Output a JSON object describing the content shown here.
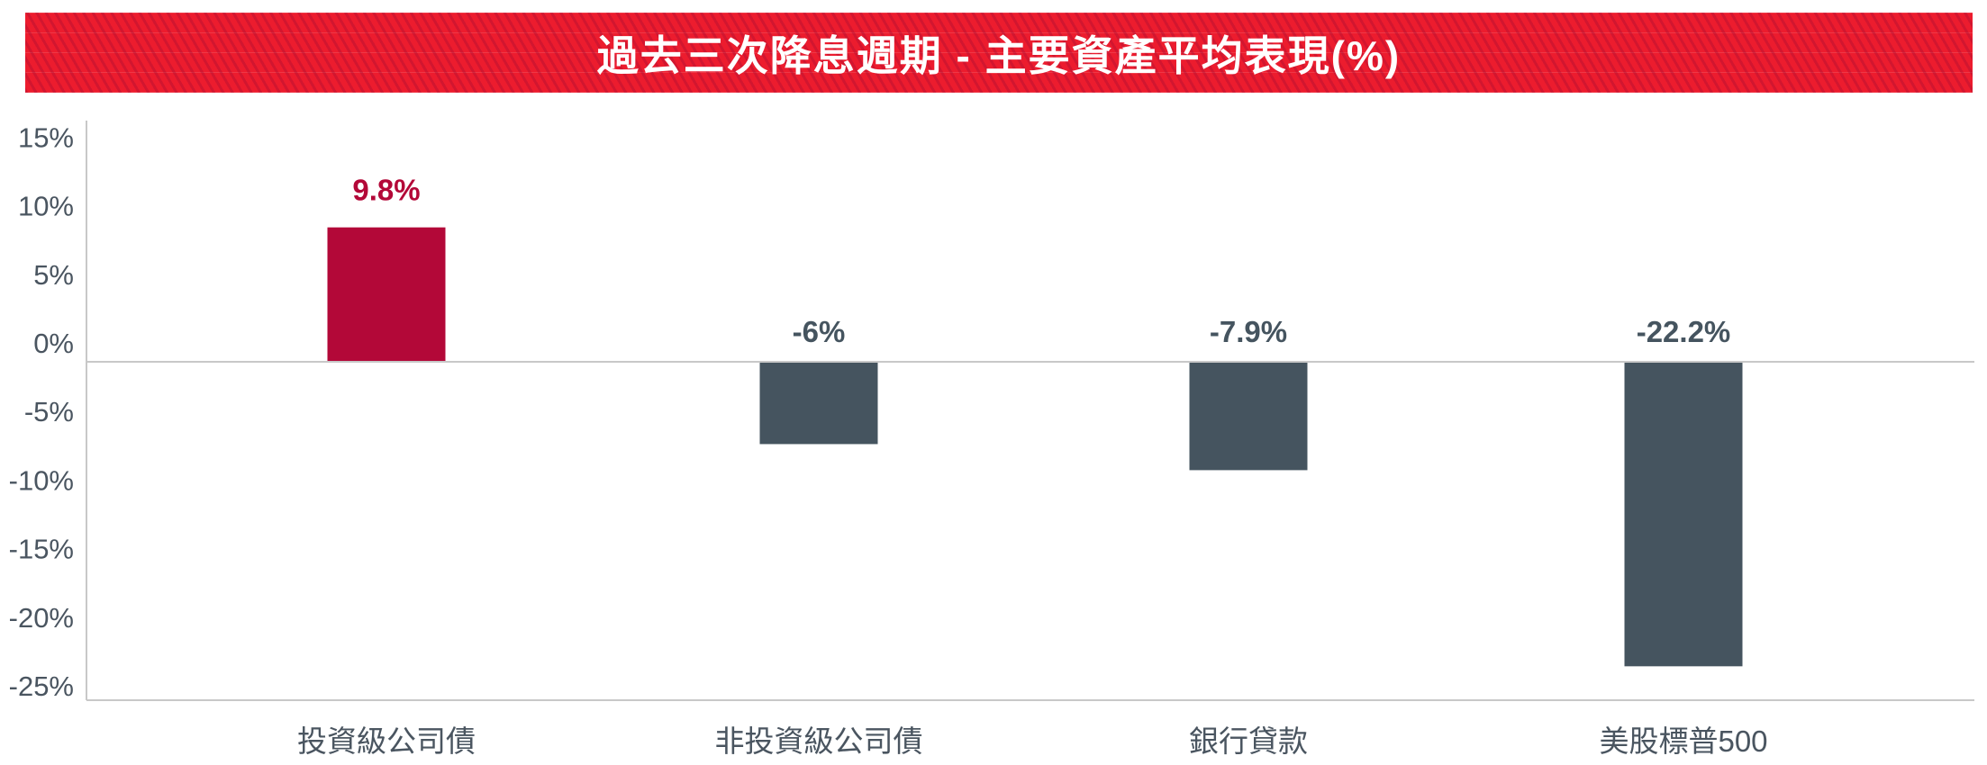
{
  "chart_data": {
    "type": "bar",
    "title": "過去三次降息週期 - 主要資產平均表現(%)",
    "categories": [
      "投資級公司債",
      "非投資級公司債",
      "銀行貸款",
      "美股標普500"
    ],
    "values": [
      9.8,
      -6,
      -7.9,
      -22.2
    ],
    "data_labels": [
      "9.8%",
      "-6%",
      "-7.9%",
      "-22.2%"
    ],
    "ylim": [
      -25,
      15
    ],
    "yticks": [
      15,
      10,
      5,
      0,
      -5,
      -10,
      -15,
      -20,
      -25
    ],
    "ytick_labels": [
      "15%",
      "10%",
      "5%",
      "0%",
      "-5%",
      "-10%",
      "-15%",
      "-20%",
      "-25%"
    ],
    "xlabel": "",
    "ylabel": "",
    "grid": false,
    "colors": {
      "positive": "#b30838",
      "negative": "#45545f",
      "title_bg": "#ec1c2e",
      "axis_text": "#4a5560"
    }
  }
}
